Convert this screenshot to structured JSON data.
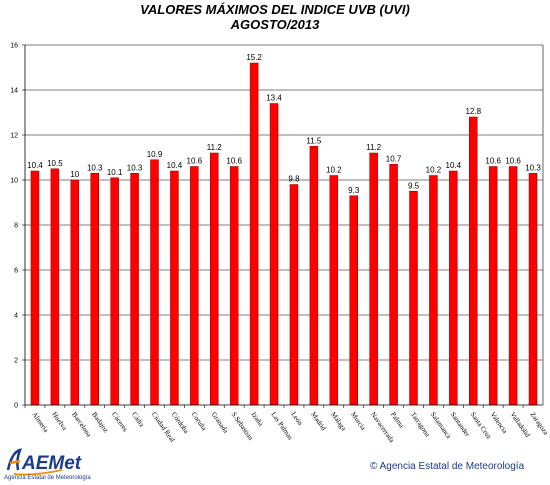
{
  "chart_data": {
    "type": "bar",
    "title": "VALORES MÁXIMOS DEL INDICE UVB (UVI)",
    "subtitle": "AGOSTO/2013",
    "ylim": [
      0,
      16
    ],
    "yticks": [
      0,
      2,
      4,
      6,
      8,
      10,
      12,
      14,
      16
    ],
    "grid": true,
    "categories": [
      "Almería",
      "Huelva",
      "Barcelona",
      "Badajoz",
      "Cáceres",
      "Cádiz",
      "Ciudad Real",
      "Córdoba",
      "Coruña",
      "Granada",
      "S.Sebastian",
      "Izaña",
      "Las Palmas",
      "León",
      "Madrid",
      "Málaga",
      "Murcia",
      "Navacerrada",
      "Palma",
      "Tarragona",
      "Salamanca",
      "Santander",
      "Santa Cruz",
      "Valencia",
      "Valladolid",
      "Zaragoza"
    ],
    "values": [
      10.4,
      10.5,
      10,
      10.3,
      10.1,
      10.3,
      10.9,
      10.4,
      10.6,
      11.2,
      10.6,
      15.2,
      13.4,
      9.8,
      11.5,
      10.2,
      9.3,
      11.2,
      10.7,
      9.5,
      10.2,
      10.4,
      12.8,
      10.6,
      10.6,
      10.3
    ],
    "value_labels": [
      "10.4",
      "10.5",
      "10",
      "10.3",
      "10.1",
      "10.3",
      "10.9",
      "10.4",
      "10.6",
      "11.2",
      "10.6",
      "15.2",
      "13.4",
      "9.8",
      "11.5",
      "10.2",
      "9.3",
      "11.2",
      "10.7",
      "9.5",
      "10.2",
      "10.4",
      "12.8",
      "10.6",
      "10.6",
      "10.3"
    ],
    "bar_color": "#ff0000"
  },
  "footer": {
    "logo_text": "AEMet",
    "logo_subtext": "Agencia Estatal de Meteorología",
    "copyright": "© Agencia Estatal de Meteorología"
  },
  "colors": {
    "bar": "#ff0000",
    "bar_edge": "#8b0000",
    "grid": "#000000",
    "logo_blue": "#1a3a8a",
    "logo_orange": "#f39200"
  }
}
